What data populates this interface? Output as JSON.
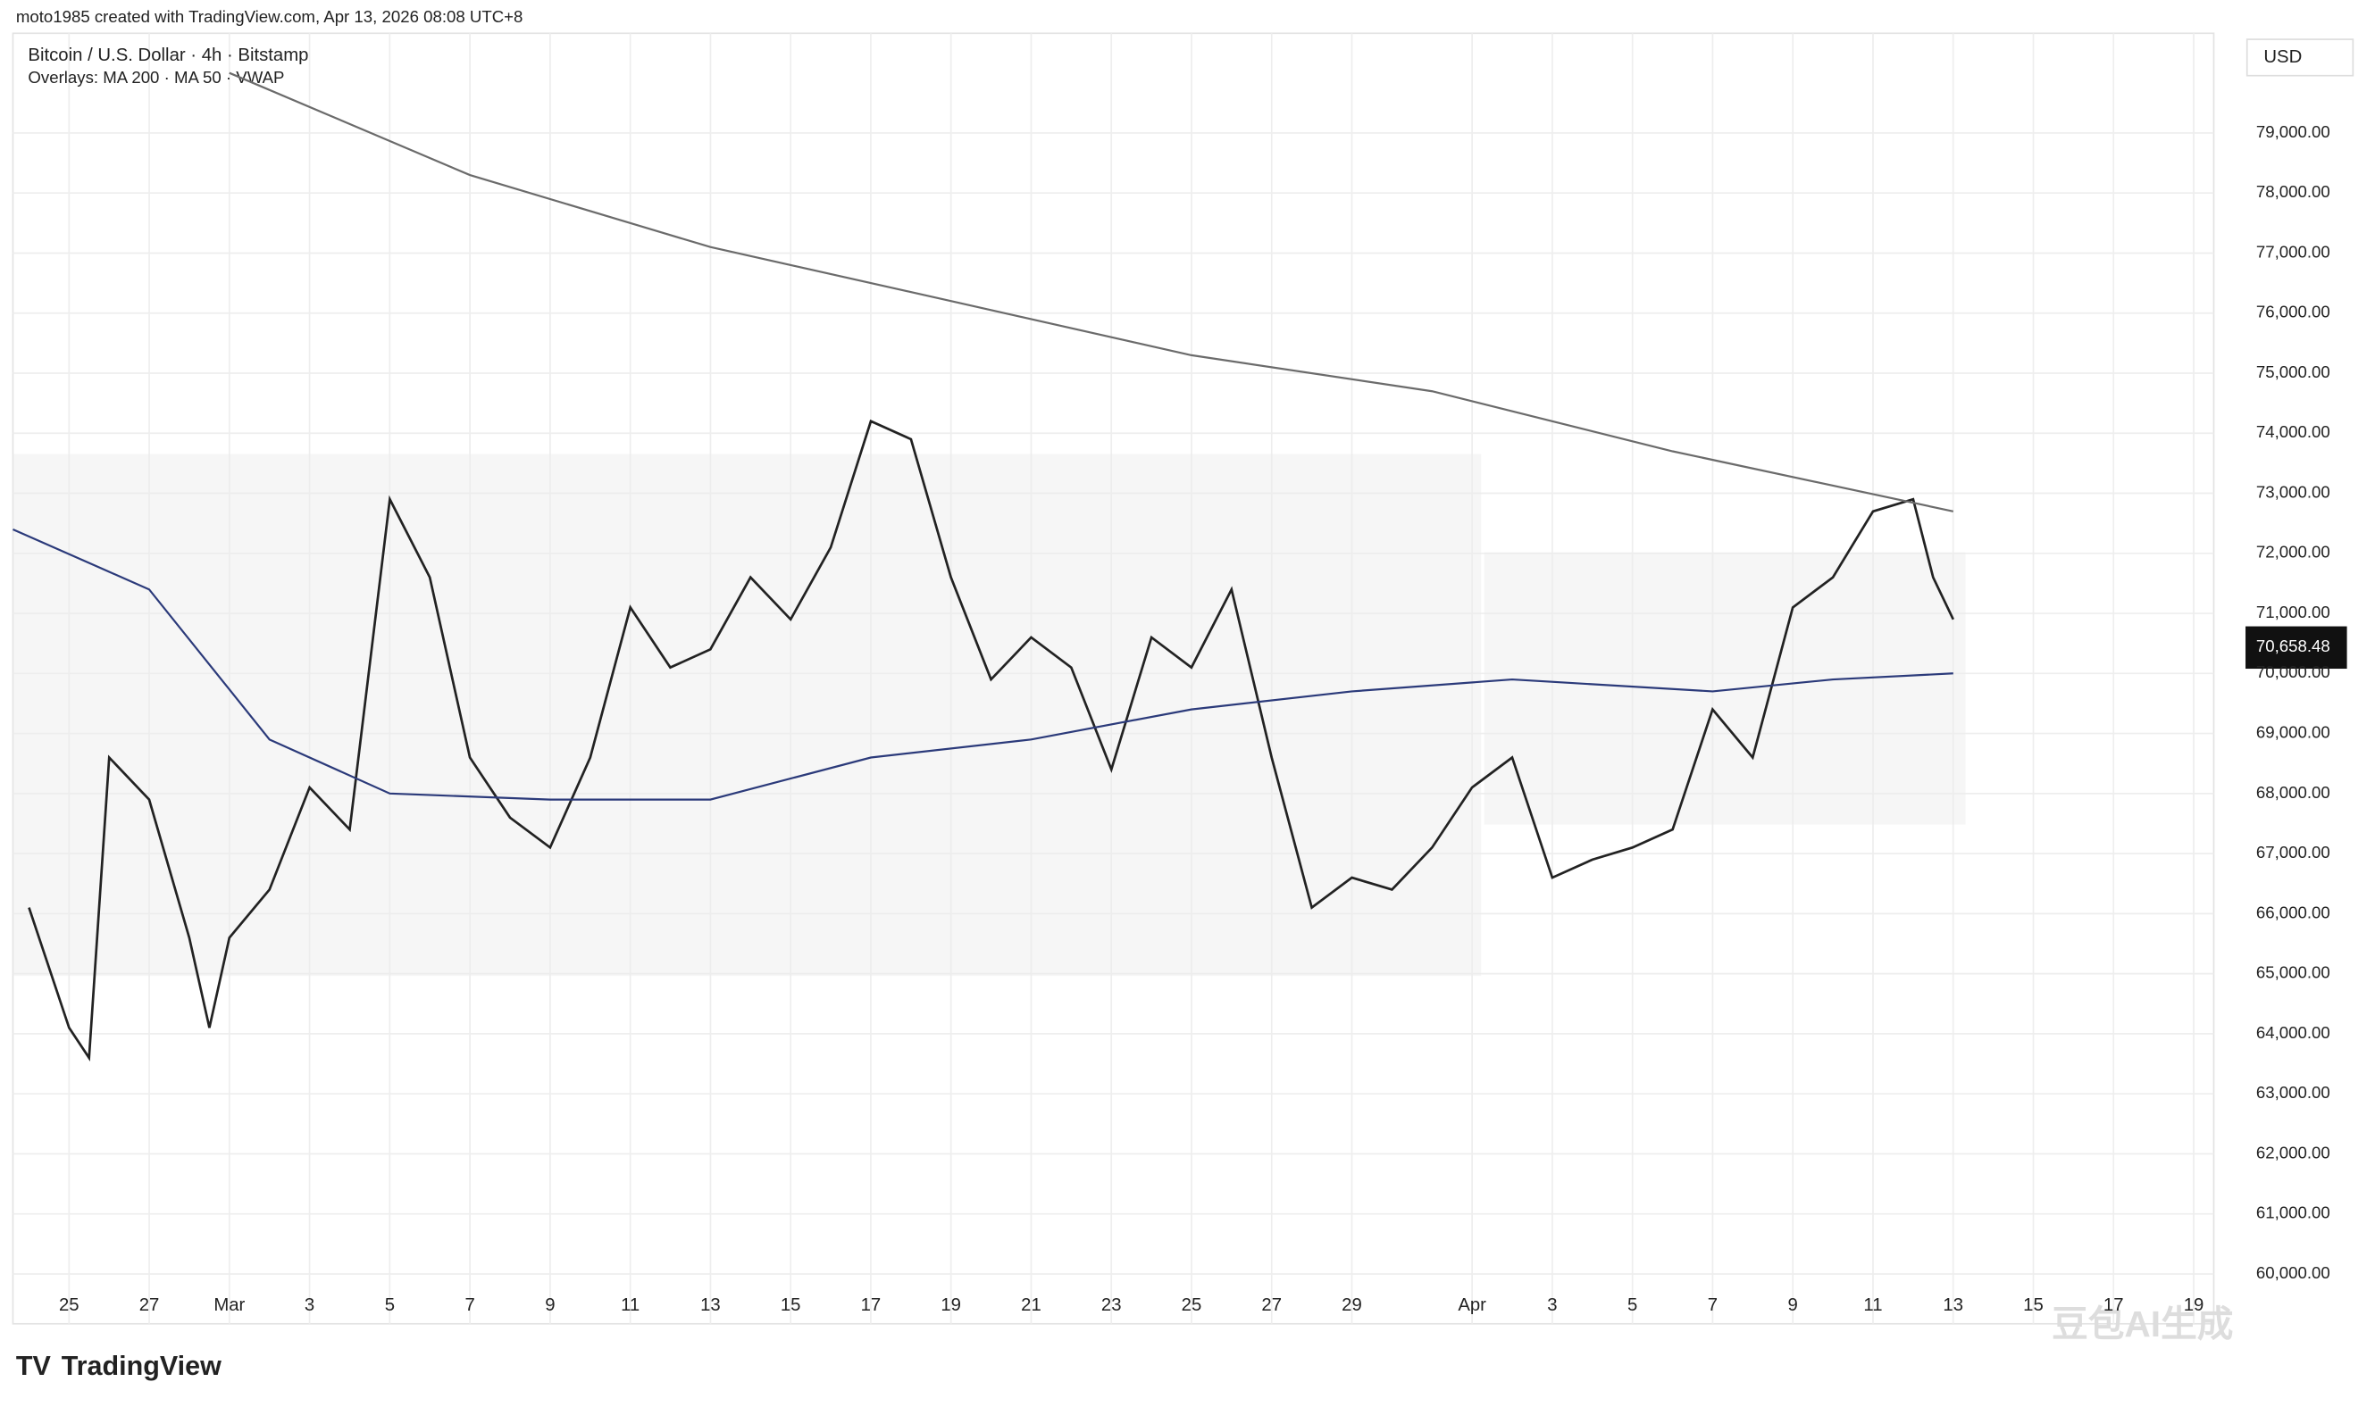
{
  "chart_data": {
    "type": "line",
    "title": "moto1985 created with TradingView.com, Apr 13, 2026 08:08 UTC+8",
    "subtitle": "Bitcoin / U.S. Dollar · 4h · Bitstamp",
    "legend_text": "Overlays: MA 200 · MA 50 · VWAP",
    "currency": "USD",
    "last_price_label": "70,658.48",
    "watermark": "豆包AI生成",
    "brand": "TradingView",
    "xlim": [
      -1.4,
      53.5
    ],
    "ylim": [
      59170,
      80660
    ],
    "grid": true,
    "xticks": [
      {
        "value": 0,
        "label": "25"
      },
      {
        "value": 2,
        "label": "27"
      },
      {
        "value": 4,
        "label": "Mar"
      },
      {
        "value": 6,
        "label": "3"
      },
      {
        "value": 8,
        "label": "5"
      },
      {
        "value": 10,
        "label": "7"
      },
      {
        "value": 12,
        "label": "9"
      },
      {
        "value": 14,
        "label": "11"
      },
      {
        "value": 16,
        "label": "13"
      },
      {
        "value": 18,
        "label": "15"
      },
      {
        "value": 20,
        "label": "17"
      },
      {
        "value": 22,
        "label": "19"
      },
      {
        "value": 24,
        "label": "21"
      },
      {
        "value": 26,
        "label": "23"
      },
      {
        "value": 28,
        "label": "25"
      },
      {
        "value": 30,
        "label": "27"
      },
      {
        "value": 32,
        "label": "29"
      },
      {
        "value": 35,
        "label": "Apr"
      },
      {
        "value": 37,
        "label": "3"
      },
      {
        "value": 39,
        "label": "5"
      },
      {
        "value": 41,
        "label": "7"
      },
      {
        "value": 43,
        "label": "9"
      },
      {
        "value": 45,
        "label": "11"
      },
      {
        "value": 47,
        "label": "13"
      },
      {
        "value": 49,
        "label": "15"
      },
      {
        "value": 51,
        "label": "17"
      },
      {
        "value": 53,
        "label": "19"
      }
    ],
    "yticks": [
      {
        "value": 60000,
        "label": "60,000.00"
      },
      {
        "value": 61000,
        "label": "61,000.00"
      },
      {
        "value": 62000,
        "label": "62,000.00"
      },
      {
        "value": 63000,
        "label": "63,000.00"
      },
      {
        "value": 64000,
        "label": "64,000.00"
      },
      {
        "value": 65000,
        "label": "65,000.00"
      },
      {
        "value": 66000,
        "label": "66,000.00"
      },
      {
        "value": 67000,
        "label": "67,000.00"
      },
      {
        "value": 68000,
        "label": "68,000.00"
      },
      {
        "value": 69000,
        "label": "69,000.00"
      },
      {
        "value": 70000,
        "label": "70,000.00"
      },
      {
        "value": 71000,
        "label": "71,000.00"
      },
      {
        "value": 72000,
        "label": "72,000.00"
      },
      {
        "value": 73000,
        "label": "73,000.00"
      },
      {
        "value": 74000,
        "label": "74,000.00"
      },
      {
        "value": 75000,
        "label": "75,000.00"
      },
      {
        "value": 76000,
        "label": "76,000.00"
      },
      {
        "value": 77000,
        "label": "77,000.00"
      },
      {
        "value": 78000,
        "label": "78,000.00"
      },
      {
        "value": 79000,
        "label": "79,000.00"
      }
    ],
    "series": [
      {
        "name": "BTCUSD",
        "color": "#222222",
        "x": [
          -1,
          0,
          0.5,
          1,
          2,
          3,
          3.5,
          4,
          5,
          6,
          7,
          8,
          9,
          10,
          11,
          12,
          13,
          14,
          15,
          16,
          17,
          18,
          19,
          20,
          21,
          22,
          23,
          24,
          25,
          26,
          27,
          28,
          29,
          30,
          31,
          32,
          33,
          34,
          35,
          36,
          37,
          38,
          39,
          40,
          41,
          42,
          43,
          44,
          45,
          46,
          46.5,
          47
        ],
        "values": [
          66100,
          64100,
          63600,
          68600,
          67900,
          65600,
          64100,
          65600,
          66400,
          68100,
          67400,
          72900,
          71600,
          68600,
          67600,
          67100,
          68600,
          71100,
          70100,
          70400,
          71600,
          70900,
          72100,
          74200,
          73900,
          71600,
          69900,
          70600,
          70100,
          68400,
          70600,
          70100,
          71400,
          68600,
          66100,
          66600,
          66400,
          67100,
          68100,
          68600,
          66600,
          66900,
          67100,
          67400,
          69400,
          68600,
          71100,
          71600,
          72700,
          72900,
          71600,
          70900
        ]
      },
      {
        "name": "MA 200",
        "color": "#6b6b6b",
        "x": [
          4,
          10,
          16,
          22,
          28,
          34,
          40,
          47
        ],
        "values": [
          80000,
          78300,
          77100,
          76200,
          75300,
          74700,
          73700,
          72700
        ]
      },
      {
        "name": "MA 50",
        "color": "#2b3a7a",
        "x": [
          -1.4,
          2,
          5,
          8,
          12,
          16,
          20,
          24,
          28,
          32,
          36,
          41,
          44,
          47
        ],
        "values": [
          72400,
          71400,
          68900,
          68000,
          67900,
          67900,
          68600,
          68900,
          69400,
          69700,
          69900,
          69700,
          69900,
          70000
        ]
      }
    ]
  }
}
